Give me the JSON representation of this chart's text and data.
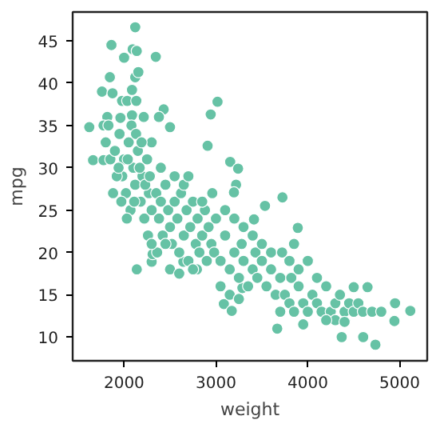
{
  "chart_data": {
    "type": "scatter",
    "xlabel": "weight",
    "ylabel": "mpg",
    "xlim": [
      1440,
      5300
    ],
    "ylim": [
      7.2,
      48.4
    ],
    "xticks": [
      2000,
      3000,
      4000,
      5000
    ],
    "yticks": [
      10,
      15,
      20,
      25,
      30,
      35,
      40,
      45
    ],
    "grid": false,
    "marker": "circle",
    "series": [
      {
        "color": "#66c2a5",
        "x": [
          2121,
          1862,
          2093,
          2138,
          2000,
          2345,
          1845,
          2121,
          2155,
          1759,
          1874,
          2086,
          1978,
          2034,
          2133,
          3017,
          2943,
          2431,
          1817,
          1960,
          2086,
          2214,
          2379,
          1621,
          1776,
          2500,
          2909,
          1662,
          1776,
          3155,
          3241,
          3219,
          3196,
          3724,
          3534,
          3414,
          3891,
          5116,
          4943,
          3667,
          4369,
          4603,
          4736,
          2138,
          2645,
          2793,
          2300,
          2310,
          3086,
          3172,
          3288,
          1800,
          1850,
          1900,
          1950,
          1980,
          2000,
          2020,
          2050,
          2070,
          2100,
          2120,
          2150,
          2180,
          2200,
          2220,
          2250,
          2270,
          2300,
          2300,
          1880,
          1920,
          1970,
          2030,
          2080,
          2130,
          2170,
          2230,
          2280,
          1830,
          1940,
          2040,
          2110,
          2190,
          2260,
          2350,
          2380,
          2400,
          2420,
          2450,
          2480,
          2500,
          2520,
          2550,
          2580,
          2600,
          2620,
          2650,
          2680,
          2700,
          2720,
          2750,
          2780,
          2800,
          2820,
          2850,
          2880,
          2900,
          2920,
          2950,
          2980,
          3000,
          2400,
          2450,
          2550,
          2650,
          2750,
          2360,
          2500,
          2700,
          2850,
          2300,
          2600,
          2960,
          3050,
          3100,
          3150,
          3200,
          3250,
          3280,
          3300,
          3350,
          3400,
          3430,
          3450,
          3500,
          3550,
          3600,
          3650,
          3700,
          3100,
          3200,
          3300,
          3400,
          3050,
          3150,
          3250,
          3500,
          3600,
          3750,
          3800,
          3820,
          3850,
          3900,
          3950,
          4000,
          4050,
          4100,
          4150,
          4200,
          4250,
          4300,
          4350,
          4400,
          4450,
          4500,
          4550,
          4600,
          4700,
          3900,
          4000,
          4100,
          3800,
          3700,
          4300,
          4500,
          4650,
          4800,
          4950,
          3950,
          4200,
          4400,
          3720,
          3850
        ],
        "values": [
          46.6,
          44.5,
          44.0,
          43.8,
          43.0,
          43.1,
          40.7,
          40.7,
          41.3,
          39.0,
          38.8,
          39.2,
          37.9,
          37.9,
          37.9,
          37.8,
          36.3,
          36.9,
          36.0,
          35.9,
          36.2,
          36.0,
          36.0,
          34.8,
          35.0,
          34.8,
          32.6,
          30.9,
          30.9,
          30.7,
          29.9,
          28.0,
          27.1,
          26.5,
          25.5,
          23.9,
          22.9,
          13.1,
          11.9,
          11.0,
          10.0,
          10.0,
          9.1,
          18.0,
          18.9,
          18.0,
          18.9,
          19.8,
          13.9,
          13.1,
          15.8,
          33,
          31,
          32,
          34,
          29,
          31,
          27,
          33,
          25,
          30,
          28,
          32,
          26,
          29,
          24,
          31,
          27,
          33,
          25,
          27,
          29,
          26,
          24,
          35,
          34,
          30,
          28,
          29,
          35,
          30,
          31,
          26,
          33,
          22,
          27,
          24,
          26,
          22,
          28,
          25,
          23,
          21,
          26,
          24,
          20,
          27,
          22,
          25,
          19,
          23,
          26,
          21,
          24,
          20,
          22,
          25,
          19,
          23,
          21,
          20,
          24,
          30,
          21,
          29,
          28,
          18,
          20,
          18,
          29,
          26,
          21,
          17.5,
          27,
          19,
          22,
          18,
          20,
          17,
          21,
          19,
          16,
          18,
          20,
          17,
          19,
          16,
          18,
          15,
          17,
          25,
          24,
          23,
          22,
          16,
          15,
          14.5,
          21,
          20,
          15,
          14,
          17,
          13,
          16,
          14,
          13,
          15,
          14,
          13,
          16,
          13,
          14,
          15,
          13,
          14,
          13,
          14,
          13,
          13,
          18,
          19,
          17,
          19,
          13,
          12,
          15.9,
          15.9,
          13,
          14,
          11.5,
          12,
          11.8,
          20,
          21
        ]
      }
    ]
  }
}
